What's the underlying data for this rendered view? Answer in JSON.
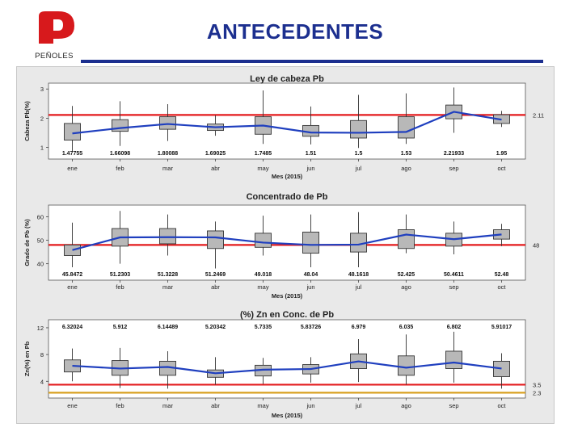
{
  "header": {
    "title": "ANTECEDENTES",
    "logo_text": "PEÑOLES",
    "logo_color": "#d7191c",
    "title_color": "#1c2f8f"
  },
  "chart_data": [
    {
      "type": "box",
      "title": "Ley de cabeza Pb",
      "xlabel": "Mes (2015)",
      "ylabel": "Cabeza Pb(%)",
      "categories": [
        "ene",
        "feb",
        "mar",
        "abr",
        "may",
        "jun",
        "jul",
        "ago",
        "sep",
        "oct"
      ],
      "ylim": [
        0.6,
        3.2
      ],
      "yticks": [
        1,
        2,
        3
      ],
      "means": [
        1.47755,
        1.66098,
        1.80088,
        1.69025,
        1.7485,
        1.51,
        1.5,
        1.53,
        2.21933,
        1.95
      ],
      "mean_labels": [
        "1.47755",
        "1.66098",
        "1.80088",
        "1.69025",
        "1.7485",
        "1.51",
        "1.5",
        "1.53",
        "2.21933",
        "1.95"
      ],
      "q1": [
        1.25,
        1.55,
        1.62,
        1.58,
        1.45,
        1.38,
        1.32,
        1.32,
        1.98,
        1.82
      ],
      "q3": [
        1.82,
        1.95,
        2.05,
        1.8,
        2.05,
        1.75,
        1.92,
        2.05,
        2.45,
        2.12
      ],
      "whisker_low": [
        0.85,
        1.05,
        1.22,
        1.4,
        1.12,
        1.1,
        0.98,
        1.12,
        1.5,
        1.7
      ],
      "whisker_high": [
        2.42,
        2.58,
        2.48,
        2.1,
        2.95,
        2.4,
        2.8,
        2.85,
        3.05,
        2.25
      ],
      "reference_lines": [
        {
          "value": 2.11,
          "label": "2.11",
          "color": "#e31a1c"
        }
      ]
    },
    {
      "type": "box",
      "title": "Concentrado de Pb",
      "xlabel": "Mes (2015)",
      "ylabel": "Grado de Pb (%)",
      "categories": [
        "ene",
        "feb",
        "mar",
        "abr",
        "may",
        "jun",
        "jul",
        "ago",
        "sep",
        "oct"
      ],
      "ylim": [
        33,
        65
      ],
      "yticks": [
        40,
        50,
        60
      ],
      "means": [
        45.8472,
        51.2303,
        51.3228,
        51.2469,
        49.018,
        48.04,
        48.1618,
        52.425,
        50.4611,
        52.48
      ],
      "mean_labels": [
        "45.8472",
        "51.2303",
        "51.3228",
        "51.2469",
        "49.018",
        "48.04",
        "48.1618",
        "52.425",
        "50.4611",
        "52.48"
      ],
      "q1": [
        43.5,
        47.5,
        48.5,
        46.5,
        47.0,
        44.5,
        45.0,
        46.5,
        47.5,
        50.5
      ],
      "q3": [
        48.0,
        55.0,
        55.0,
        54.0,
        53.0,
        53.5,
        53.0,
        54.5,
        53.0,
        54.5
      ],
      "whisker_low": [
        38.5,
        40.0,
        43.5,
        38.0,
        43.5,
        38.5,
        38.5,
        44.5,
        44.0,
        47.5
      ],
      "whisker_high": [
        57.5,
        62.5,
        61.0,
        58.0,
        60.5,
        61.0,
        62.0,
        61.0,
        58.0,
        57.0
      ],
      "reference_lines": [
        {
          "value": 48,
          "label": "48",
          "color": "#e31a1c"
        }
      ]
    },
    {
      "type": "box",
      "title": "(%) Zn en Conc. de Pb",
      "xlabel": "Mes (2015)",
      "ylabel": "Zn(%) en Pb",
      "categories": [
        "ene",
        "feb",
        "mar",
        "abr",
        "may",
        "jun",
        "jul",
        "ago",
        "sep",
        "oct"
      ],
      "ylim": [
        1.5,
        13.2
      ],
      "yticks": [
        4,
        8,
        12
      ],
      "means": [
        6.32024,
        5.912,
        6.14489,
        5.20342,
        5.7335,
        5.83726,
        6.979,
        6.035,
        6.802,
        5.91017
      ],
      "mean_labels": [
        "6.32024",
        "5.912",
        "6.14489",
        "5.20342",
        "5.7335",
        "5.83726",
        "6.979",
        "6.035",
        "6.802",
        "5.91017"
      ],
      "q1": [
        5.4,
        4.9,
        4.9,
        4.6,
        4.8,
        5.1,
        5.9,
        4.9,
        5.9,
        4.7
      ],
      "q3": [
        7.2,
        7.1,
        7.0,
        5.7,
        6.4,
        6.5,
        8.1,
        7.8,
        8.5,
        7.0
      ],
      "whisker_low": [
        4.0,
        3.0,
        2.9,
        3.5,
        3.6,
        3.8,
        3.9,
        3.5,
        3.8,
        2.9
      ],
      "whisker_high": [
        8.9,
        9.0,
        8.5,
        7.6,
        7.5,
        7.6,
        10.3,
        11.0,
        11.4,
        8.2
      ],
      "reference_lines": [
        {
          "value": 3.5,
          "label": "3.5",
          "color": "#e31a1c"
        },
        {
          "value": 2.3,
          "label": "2.3",
          "color": "#d9a020"
        }
      ]
    }
  ]
}
